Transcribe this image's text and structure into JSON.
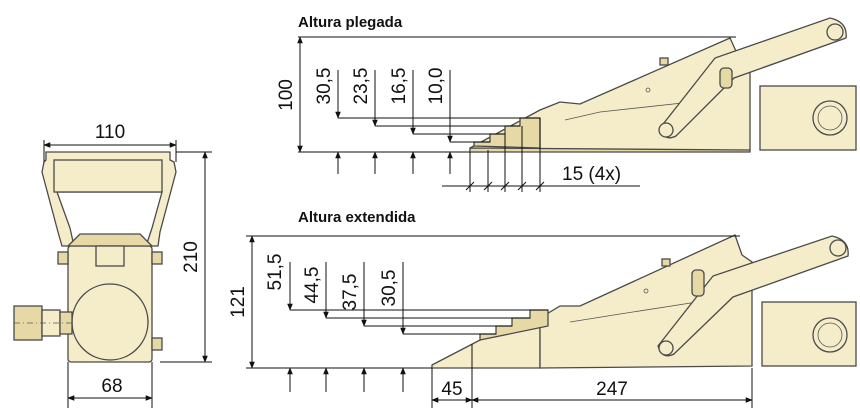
{
  "titles": {
    "folded": "Altura plegada",
    "extended": "Altura extendida"
  },
  "front_view": {
    "width_top": "110",
    "height": "210",
    "base_width": "68"
  },
  "folded": {
    "total_height": "100",
    "step_heights": [
      "30,5",
      "23,5",
      "16,5",
      "10,0"
    ],
    "step_pitch": "15 (4x)"
  },
  "extended": {
    "total_height": "121",
    "step_heights": [
      "51,5",
      "44,5",
      "37,5",
      "30,5"
    ],
    "wedge_length": "45",
    "body_length": "247"
  },
  "colors": {
    "part_fill": "#f5edc9",
    "outline": "#4a4a4a",
    "dimension": "#111111"
  }
}
